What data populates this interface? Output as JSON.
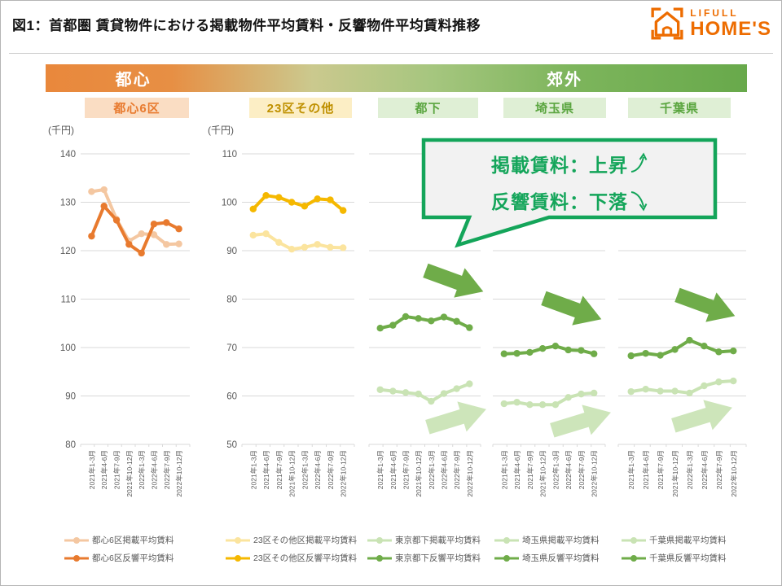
{
  "header": {
    "title": "図1：首都圏 賃貸物件における掲載物件平均賃料・反響物件平均賃料推移",
    "logo": {
      "top": "LIFULL",
      "bottom": "HOME'S"
    }
  },
  "banner": {
    "left_label": "都心",
    "right_label": "郊外"
  },
  "region_chips": [
    {
      "label": "都心6区",
      "bg": "#FADDC3",
      "text_color": "#E87A2E"
    },
    {
      "label": "23区その他",
      "bg": "#FCEEC5",
      "text_color": "#BF9000"
    },
    {
      "label": "都下",
      "bg": "#DFEFD5",
      "text_color": "#5AA53F"
    },
    {
      "label": "埼玉県",
      "bg": "#DFEFD5",
      "text_color": "#5AA53F"
    },
    {
      "label": "千葉県",
      "bg": "#DFEFD5",
      "text_color": "#5AA53F"
    }
  ],
  "callout": {
    "line1_label": "掲載賃料：上昇",
    "line2_label": "反響賃料：下落",
    "border_color": "#14A55A",
    "bg_color": "#F2F2F2"
  },
  "palette": {
    "grid": "#D9D9D9",
    "tick_text": "#595959",
    "legend_text": "#595959",
    "arrow_dark": "#6FAC49",
    "arrow_light": "#CDE5BA",
    "brand_orange": "#ED6C00"
  },
  "chart_data": {
    "type": "line",
    "x_labels": [
      "2021年1-3月",
      "2021年4-6月",
      "2021年7-9月",
      "2021年10-12月",
      "2022年1-3月",
      "2022年4-6月",
      "2022年7-9月",
      "2022年10-12月"
    ],
    "charts": [
      {
        "name": "都心6区",
        "unit": "(千円)",
        "show_y_axis": true,
        "ylim": [
          80,
          140
        ],
        "yticks": [
          140,
          130,
          120,
          110,
          100,
          90,
          80
        ],
        "series": [
          {
            "name": "都心6区掲載平均賃料",
            "color": "#F4C7A1",
            "values": [
              132.2,
              132.6,
              126.5,
              122.0,
              123.5,
              123.3,
              121.3,
              121.4
            ]
          },
          {
            "name": "都心6区反響平均賃料",
            "color": "#E87A2E",
            "values": [
              123.0,
              129.2,
              126.3,
              121.3,
              119.5,
              125.5,
              125.8,
              124.5
            ]
          }
        ]
      },
      {
        "name": "23区その他",
        "unit": "(千円)",
        "show_y_axis": true,
        "ylim": [
          50,
          110
        ],
        "yticks": [
          110,
          100,
          90,
          80,
          70,
          60,
          50
        ],
        "series": [
          {
            "name": "23区その他区掲載平均賃料",
            "color": "#FBE49E",
            "values": [
              93.2,
              93.5,
              91.7,
              90.3,
              90.7,
              91.3,
              90.7,
              90.6
            ]
          },
          {
            "name": "23区その他区反響平均賃料",
            "color": "#F5B800",
            "values": [
              98.6,
              101.4,
              101.0,
              100.0,
              99.2,
              100.7,
              100.5,
              98.3
            ]
          }
        ]
      },
      {
        "name": "都下",
        "unit": "",
        "show_y_axis": false,
        "ylim": [
          50,
          110
        ],
        "yticks": [
          110,
          100,
          90,
          80,
          70,
          60,
          50
        ],
        "series": [
          {
            "name": "東京都下掲載平均賃料",
            "color": "#C9E3B4",
            "values": [
              61.3,
              61.0,
              60.7,
              60.4,
              58.9,
              60.5,
              61.5,
              62.5
            ]
          },
          {
            "name": "東京都下反響平均賃料",
            "color": "#6FAC49",
            "values": [
              74.0,
              74.6,
              76.4,
              76.0,
              75.5,
              76.3,
              75.4,
              74.1
            ]
          }
        ]
      },
      {
        "name": "埼玉県",
        "unit": "",
        "show_y_axis": false,
        "ylim": [
          50,
          110
        ],
        "yticks": [
          110,
          100,
          90,
          80,
          70,
          60,
          50
        ],
        "series": [
          {
            "name": "埼玉県掲載平均賃料",
            "color": "#C9E3B4",
            "values": [
              58.4,
              58.7,
              58.2,
              58.2,
              58.2,
              59.7,
              60.4,
              60.6
            ]
          },
          {
            "name": "埼玉県反響平均賃料",
            "color": "#6FAC49",
            "values": [
              68.7,
              68.8,
              69.0,
              69.8,
              70.3,
              69.5,
              69.4,
              68.7
            ]
          }
        ]
      },
      {
        "name": "千葉県",
        "unit": "",
        "show_y_axis": false,
        "ylim": [
          50,
          110
        ],
        "yticks": [
          110,
          100,
          90,
          80,
          70,
          60,
          50
        ],
        "series": [
          {
            "name": "千葉県掲載平均賃料",
            "color": "#C9E3B4",
            "values": [
              60.9,
              61.4,
              61.0,
              61.0,
              60.6,
              62.1,
              62.9,
              63.1
            ]
          },
          {
            "name": "千葉県反響平均賃料",
            "color": "#6FAC49",
            "values": [
              68.3,
              68.8,
              68.4,
              69.6,
              71.5,
              70.3,
              69.1,
              69.3
            ]
          }
        ]
      }
    ],
    "trend_arrows": [
      {
        "chart": "都下",
        "listed_trend": "up",
        "response_trend": "down"
      },
      {
        "chart": "埼玉県",
        "listed_trend": "up",
        "response_trend": "down"
      },
      {
        "chart": "千葉県",
        "listed_trend": "up",
        "response_trend": "down"
      }
    ]
  }
}
